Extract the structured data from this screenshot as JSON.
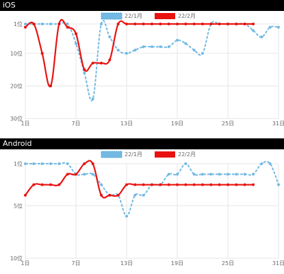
{
  "charts": [
    {
      "header": "iOS"
    },
    {
      "header": "Android"
    }
  ],
  "chart_data": [
    {
      "type": "line",
      "title": "",
      "y_inverted": true,
      "ylim": [
        1,
        30
      ],
      "y_ticks": [
        {
          "v": 1,
          "label": "1位"
        },
        {
          "v": 10,
          "label": "10位"
        },
        {
          "v": 20,
          "label": "20位"
        },
        {
          "v": 30,
          "label": "30位"
        }
      ],
      "x_ticks": [
        {
          "v": 1,
          "label": "1日"
        },
        {
          "v": 7,
          "label": "7日"
        },
        {
          "v": 13,
          "label": "13日"
        },
        {
          "v": 19,
          "label": "19日"
        },
        {
          "v": 25,
          "label": "25日"
        },
        {
          "v": 31,
          "label": "31日"
        }
      ],
      "grid": true,
      "legend_position": "top",
      "series": [
        {
          "name": "22/1月",
          "color": "#74b9e3",
          "dashed": true,
          "x": [
            1,
            2,
            3,
            4,
            5,
            6,
            7,
            8,
            9,
            10,
            11,
            12,
            13,
            14,
            15,
            16,
            17,
            18,
            19,
            20,
            21,
            22,
            23,
            24,
            25,
            26,
            27,
            28,
            29,
            30,
            31
          ],
          "values": [
            1,
            1,
            1,
            1,
            1,
            1,
            7,
            16,
            24,
            1,
            5,
            9,
            10,
            9,
            8,
            8,
            8,
            8,
            6,
            7,
            9,
            10,
            1,
            1,
            1,
            1,
            1,
            3,
            5,
            2,
            2
          ]
        },
        {
          "name": "22/2月",
          "color": "#e8120f",
          "dashed": false,
          "x": [
            1,
            2,
            3,
            4,
            5,
            6,
            7,
            8,
            9,
            10,
            11,
            12,
            13,
            14,
            15,
            16,
            17,
            18,
            19,
            20,
            21,
            22,
            23,
            24,
            25,
            26,
            27,
            28
          ],
          "values": [
            2,
            1,
            10,
            20,
            1,
            2,
            4,
            15,
            13,
            13,
            12,
            1,
            1,
            1,
            1,
            1,
            1,
            1,
            1,
            1,
            1,
            1,
            1,
            1,
            1,
            1,
            1,
            1
          ]
        }
      ]
    },
    {
      "type": "line",
      "title": "",
      "y_inverted": true,
      "ylim": [
        1,
        10
      ],
      "y_ticks": [
        {
          "v": 1,
          "label": "1位"
        },
        {
          "v": 5,
          "label": "5位"
        },
        {
          "v": 10,
          "label": "10位"
        }
      ],
      "x_ticks": [
        {
          "v": 1,
          "label": "1日"
        },
        {
          "v": 7,
          "label": "7日"
        },
        {
          "v": 13,
          "label": "13日"
        },
        {
          "v": 19,
          "label": "19日"
        },
        {
          "v": 25,
          "label": "25日"
        },
        {
          "v": 31,
          "label": "31日"
        }
      ],
      "grid": true,
      "legend_position": "top",
      "series": [
        {
          "name": "22/1月",
          "color": "#74b9e3",
          "dashed": true,
          "x": [
            1,
            2,
            3,
            4,
            5,
            6,
            7,
            8,
            9,
            10,
            11,
            12,
            13,
            14,
            15,
            16,
            17,
            18,
            19,
            20,
            21,
            22,
            23,
            24,
            25,
            26,
            27,
            28,
            29,
            30,
            31
          ],
          "values": [
            1,
            1,
            1,
            1,
            1,
            1,
            2,
            2,
            2,
            3,
            4,
            4,
            6,
            4,
            4,
            3,
            3,
            2,
            2,
            1,
            2,
            2,
            2,
            2,
            2,
            2,
            2,
            2,
            1,
            1,
            3
          ]
        },
        {
          "name": "22/2月",
          "color": "#e8120f",
          "dashed": false,
          "x": [
            1,
            2,
            3,
            4,
            5,
            6,
            7,
            8,
            9,
            10,
            11,
            12,
            13,
            14,
            15,
            16,
            17,
            18,
            19,
            20,
            21,
            22,
            23,
            24,
            25,
            26,
            27,
            28
          ],
          "values": [
            4,
            3,
            3,
            3,
            3,
            2,
            2,
            1,
            1,
            4,
            4,
            4,
            3,
            3,
            3,
            3,
            3,
            3,
            3,
            3,
            3,
            3,
            3,
            3,
            3,
            3,
            3,
            3
          ]
        }
      ]
    }
  ]
}
